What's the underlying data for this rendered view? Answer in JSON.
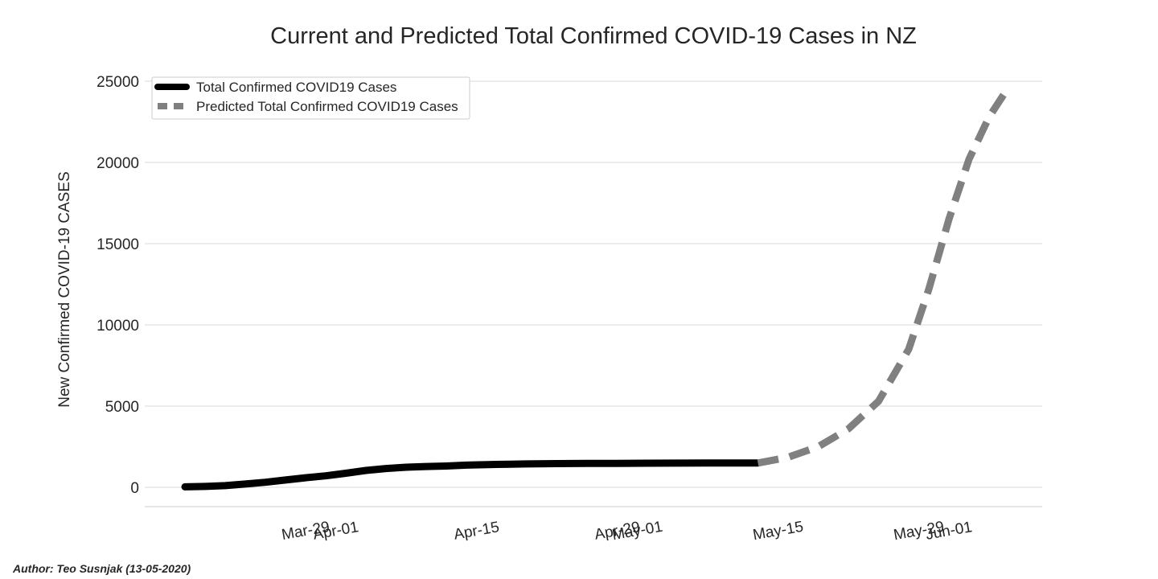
{
  "chart_data": {
    "type": "line",
    "title": "Current and Predicted Total Confirmed COVID-19 Cases in NZ",
    "xlabel": "",
    "ylabel": "New Confirmed COVID-19 CASES",
    "ylim": [
      -1200,
      25500
    ],
    "yticks": [
      0,
      5000,
      10000,
      15000,
      20000,
      25000
    ],
    "xticks": [
      "Mar-29",
      "Apr-01",
      "Apr-15",
      "Apr-29",
      "May-01",
      "May-15",
      "May-29",
      "Jun-01"
    ],
    "grid": true,
    "legend_position": "top-left",
    "series": [
      {
        "name": "Total Confirmed COVID19 Cases",
        "style": "solid",
        "color": "#000000",
        "x": [
          "Mar-17",
          "Mar-19",
          "Mar-21",
          "Mar-23",
          "Mar-25",
          "Mar-27",
          "Mar-29",
          "Mar-31",
          "Apr-02",
          "Apr-04",
          "Apr-06",
          "Apr-08",
          "Apr-10",
          "Apr-12",
          "Apr-14",
          "Apr-17",
          "Apr-20",
          "Apr-23",
          "Apr-26",
          "Apr-29",
          "May-02",
          "May-05",
          "May-08",
          "May-11",
          "May-13"
        ],
        "values": [
          28,
          52,
          102,
          205,
          310,
          450,
          589,
          708,
          868,
          1039,
          1160,
          1239,
          1283,
          1312,
          1366,
          1409,
          1440,
          1461,
          1472,
          1476,
          1487,
          1489,
          1494,
          1497,
          1497
        ]
      },
      {
        "name": "Predicted Total Confirmed COVID19 Cases",
        "style": "dashed",
        "color": "#808080",
        "x": [
          "May-13",
          "May-16",
          "May-19",
          "May-22",
          "May-25",
          "May-28",
          "May-30",
          "Jun-01",
          "Jun-03",
          "Jun-05",
          "Jun-07"
        ],
        "values": [
          1497,
          1850,
          2500,
          3600,
          5300,
          8500,
          12200,
          16500,
          20200,
          22800,
          24700
        ]
      }
    ]
  },
  "author": "Author: Teo Susnjak (13-05-2020)"
}
